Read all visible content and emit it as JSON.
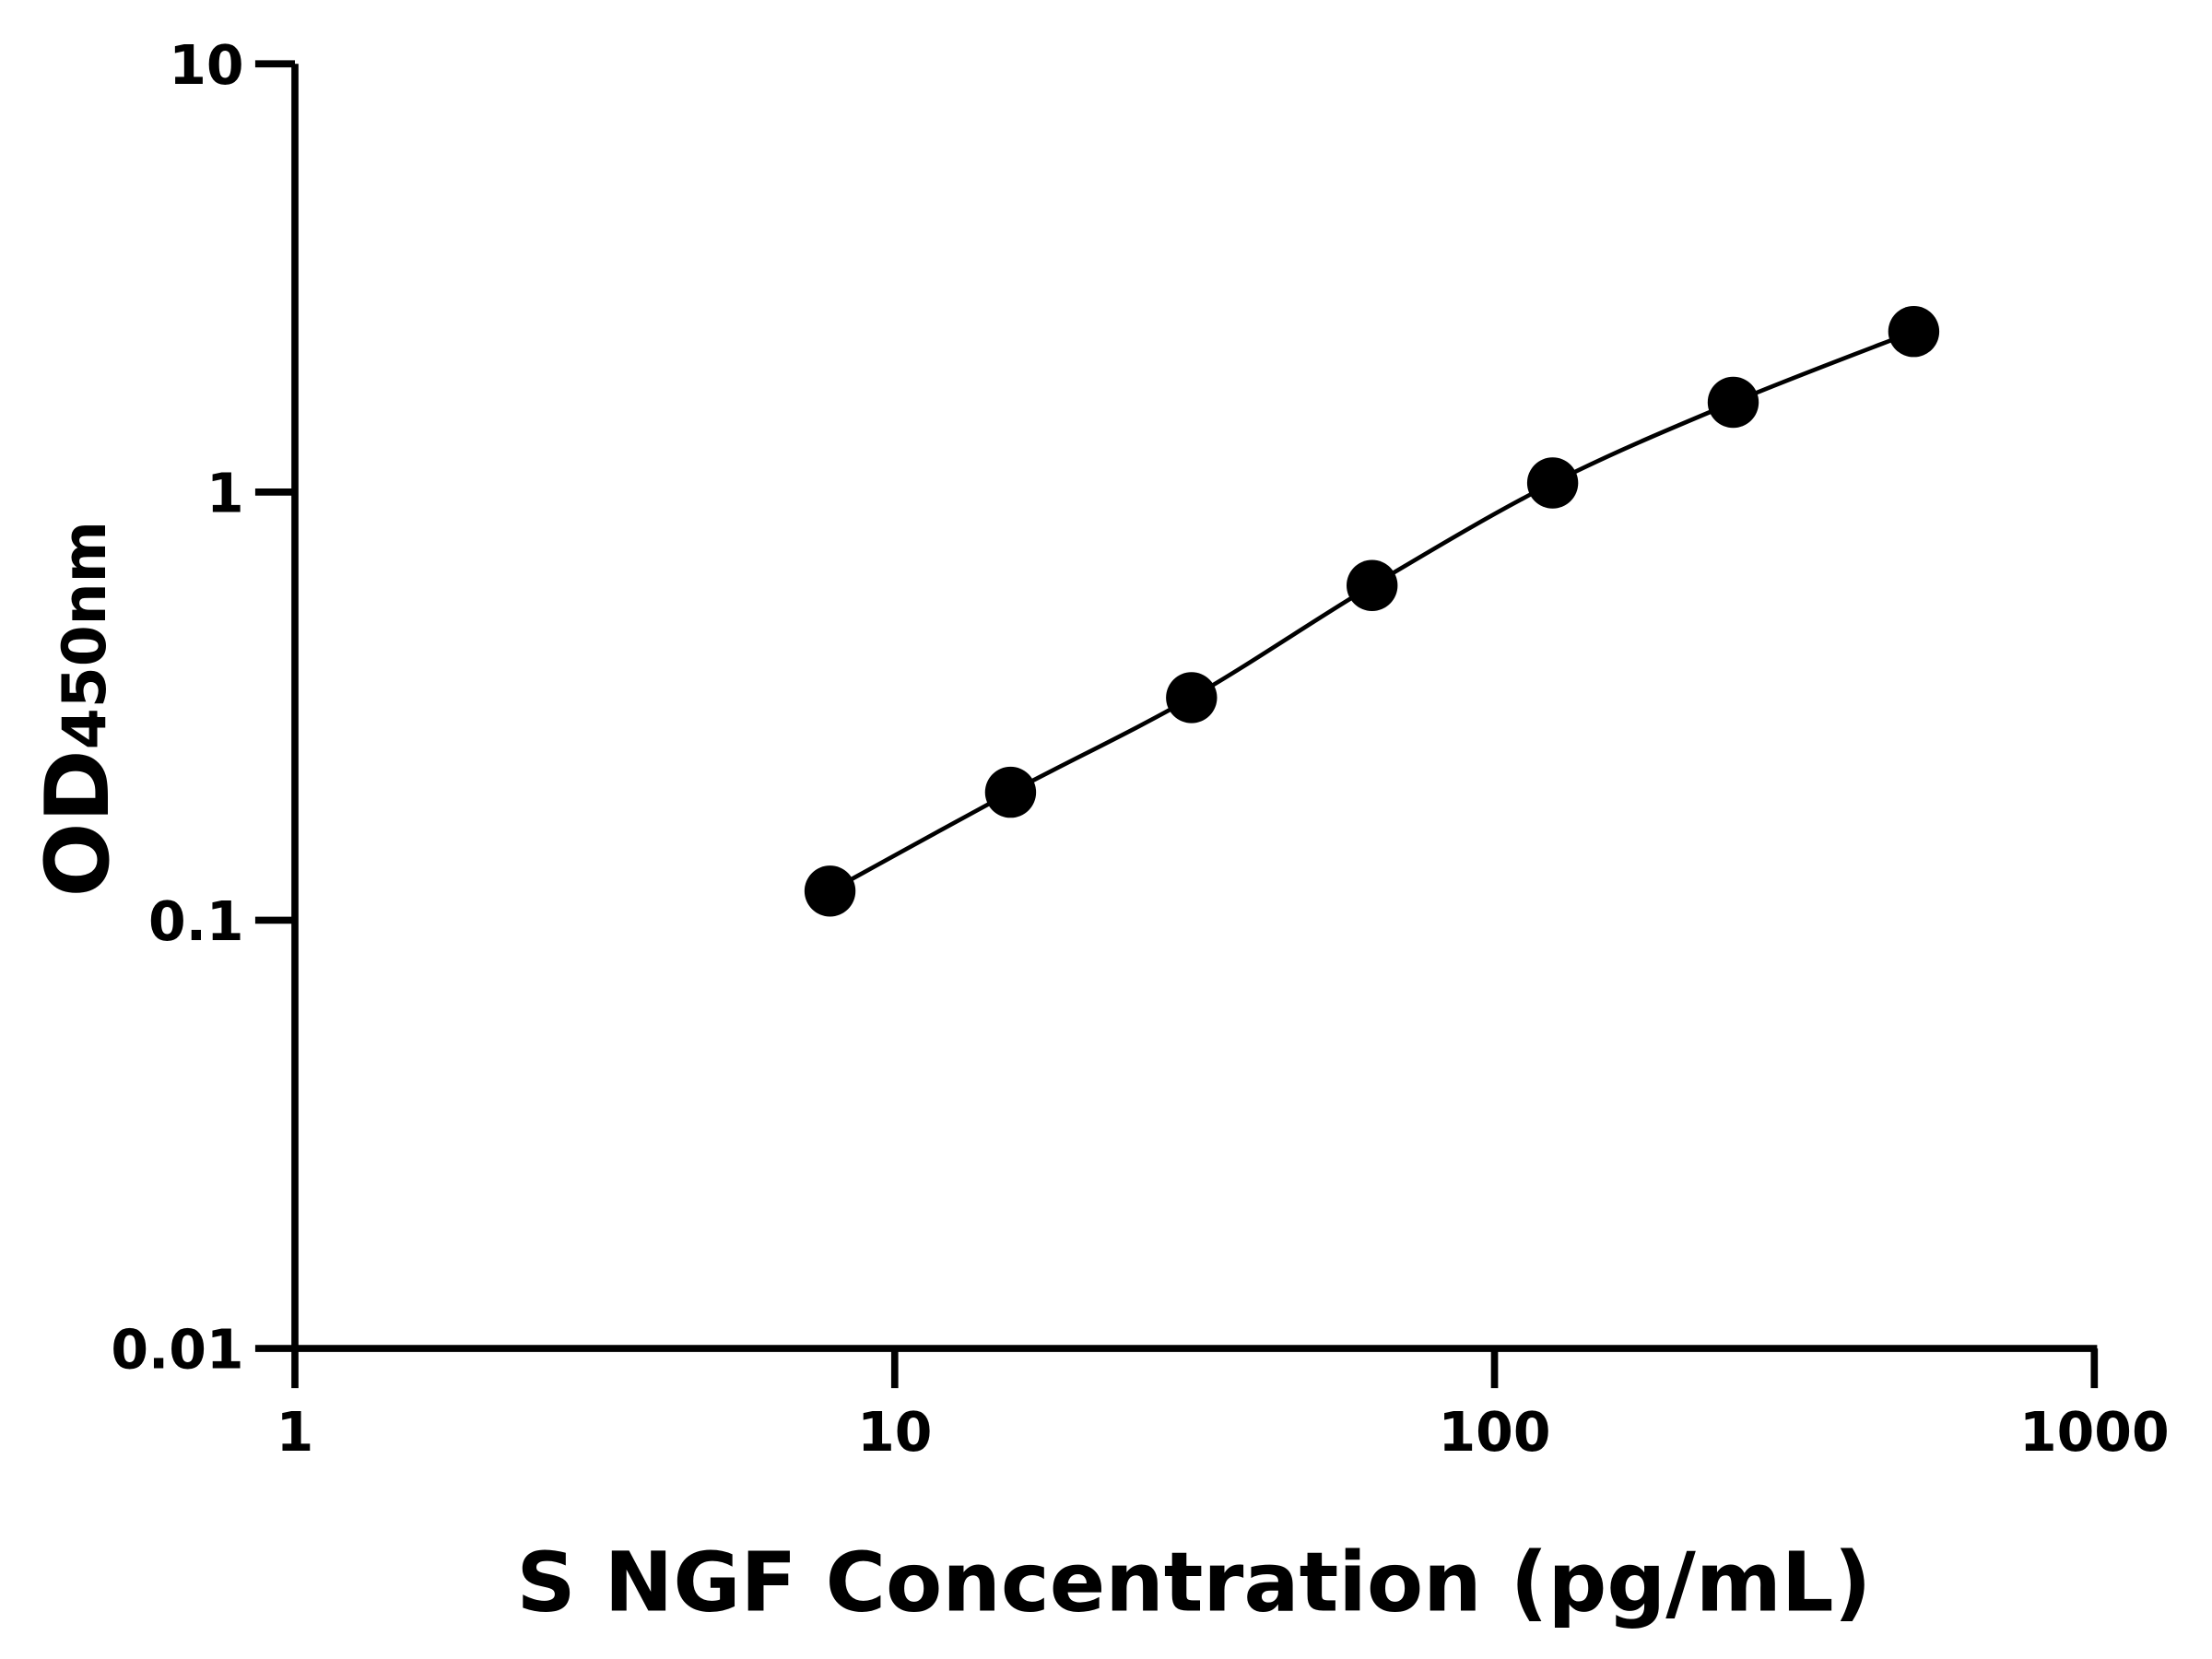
{
  "chart_data": {
    "type": "scatter",
    "title": "",
    "xlabel": "S NGF Concentration (pg/mL)",
    "ylabel": "OD",
    "ylabel_subscript": "450nm",
    "x_scale": "log",
    "y_scale": "log",
    "xlim": [
      1,
      1000
    ],
    "ylim": [
      0.01,
      10
    ],
    "x_ticks": [
      "1",
      "10",
      "100",
      "1000"
    ],
    "y_ticks": [
      "0.01",
      "0.1",
      "1",
      "10"
    ],
    "grid": false,
    "legend": "none",
    "fit_line": true,
    "colors": {
      "points": "#000000",
      "line": "#000000",
      "axes": "#000000"
    },
    "series": [
      {
        "x": [
          7.8,
          15.6,
          31.25,
          62.5,
          125,
          250,
          500
        ],
        "y": [
          0.117,
          0.199,
          0.331,
          0.605,
          1.05,
          1.62,
          2.37
        ]
      }
    ]
  }
}
